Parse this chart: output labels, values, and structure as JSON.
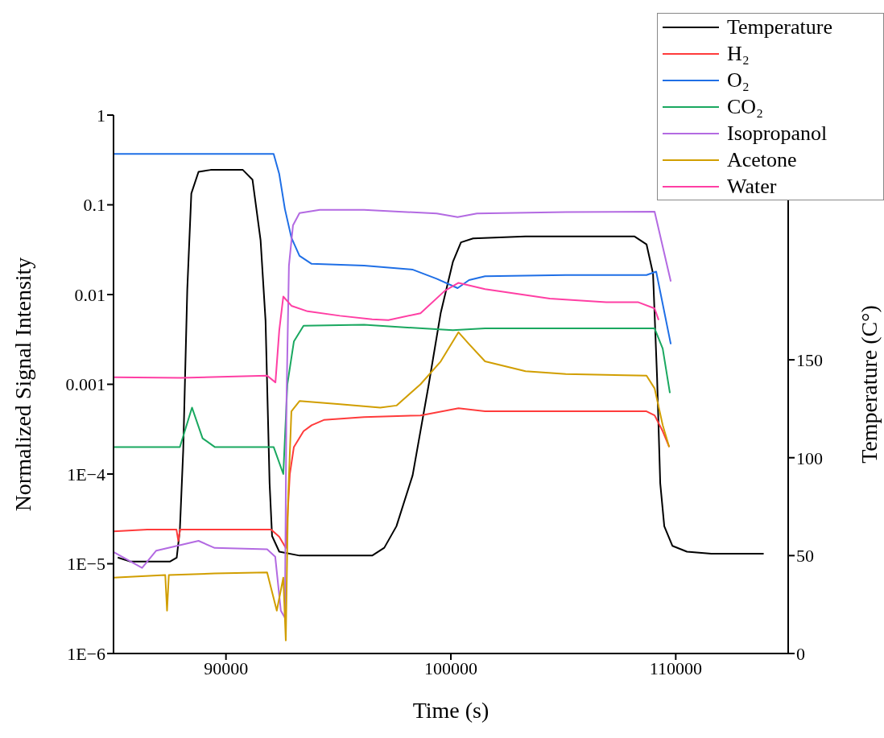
{
  "chart_data": {
    "type": "line",
    "xlabel": "Time (s)",
    "ylabel": "Normalized Signal Intensity",
    "y2label": "Temperature (C°)",
    "xlim": [
      85000,
      115000
    ],
    "xticks": [
      90000,
      100000,
      110000
    ],
    "ylim": [
      1e-06,
      1
    ],
    "yticks": [
      {
        "value": 1e-06,
        "label": "1E−6"
      },
      {
        "value": 1e-05,
        "label": "1E−5"
      },
      {
        "value": 0.0001,
        "label": "1E−4"
      },
      0.001,
      0.01,
      0.1,
      1
    ],
    "y2lim": [
      0,
      275
    ],
    "y2ticks": [
      0,
      50,
      100,
      150
    ],
    "log": "y",
    "grid": false,
    "legend": "top right",
    "marker": "none",
    "line_style": "solid",
    "series": [
      {
        "name": "Temperature",
        "color": "#000000",
        "axis": "y2",
        "x": [
          85190,
          85730,
          87520,
          87810,
          87950,
          88100,
          88280,
          88460,
          88780,
          89320,
          90750,
          91180,
          91540,
          91760,
          91940,
          92050,
          92370,
          93270,
          96500,
          97040,
          97580,
          98300,
          99010,
          99550,
          100090,
          100450,
          100990,
          103320,
          108170,
          108700,
          108990,
          109170,
          109310,
          109490,
          109850,
          110500,
          111580,
          113910
        ],
        "values": [
          49,
          47,
          47,
          49,
          63,
          104,
          186,
          235,
          246,
          247,
          247,
          242,
          211,
          170,
          87,
          60,
          52,
          50,
          50,
          54,
          65,
          91,
          137,
          174,
          200,
          210,
          212,
          213,
          213,
          209,
          194,
          141,
          87,
          65,
          55,
          52,
          51,
          51
        ]
      },
      {
        "name": "H₂",
        "color": "#ff3b3b",
        "x": [
          85000,
          86500,
          87800,
          87880,
          87960,
          89500,
          91500,
          92010,
          92370,
          92660,
          92840,
          93020,
          93450,
          93810,
          94350,
          96140,
          98650,
          100340,
          101520,
          108700,
          109060,
          109420,
          109710
        ],
        "values": [
          2.3e-05,
          2.4e-05,
          2.4e-05,
          1.8e-05,
          2.4e-05,
          2.4e-05,
          2.4e-05,
          2.4e-05,
          2e-05,
          1.5e-05,
          0.0001,
          0.0002,
          0.0003,
          0.00035,
          0.0004,
          0.00043,
          0.00045,
          0.00054,
          0.0005,
          0.0005,
          0.00045,
          0.0003,
          0.0002
        ]
      },
      {
        "name": "O₂",
        "color": "#1f6fe6",
        "x": [
          85000,
          89000,
          92120,
          92370,
          92620,
          92910,
          93270,
          93810,
          96140,
          98290,
          99370,
          100300,
          100810,
          101520,
          105110,
          108700,
          109130,
          109780
        ],
        "values": [
          0.37,
          0.37,
          0.37,
          0.22,
          0.09,
          0.043,
          0.027,
          0.022,
          0.021,
          0.019,
          0.015,
          0.0118,
          0.0145,
          0.016,
          0.0165,
          0.0165,
          0.018,
          0.0028
        ]
      },
      {
        "name": "CO₂",
        "color": "#1aa860",
        "x": [
          85000,
          87950,
          88490,
          88960,
          89500,
          92120,
          92550,
          92730,
          93020,
          93450,
          96140,
          100090,
          101520,
          109060,
          109420,
          109740
        ],
        "values": [
          0.0002,
          0.0002,
          0.00055,
          0.00025,
          0.0002,
          0.0002,
          0.0001,
          0.001,
          0.003,
          0.0045,
          0.0046,
          0.004,
          0.0042,
          0.0042,
          0.0025,
          0.0008
        ]
      },
      {
        "name": "Isopropanol",
        "color": "#b36ae2",
        "x": [
          85000,
          86270,
          86900,
          88780,
          89500,
          91830,
          92190,
          92440,
          92620,
          92690,
          92800,
          92980,
          93270,
          94170,
          96140,
          99370,
          100300,
          101160,
          105110,
          109060,
          109780
        ],
        "values": [
          1.35e-05,
          9e-06,
          1.4e-05,
          1.8e-05,
          1.5e-05,
          1.45e-05,
          1.2e-05,
          3e-06,
          2.5e-06,
          0.00063,
          0.021,
          0.059,
          0.081,
          0.088,
          0.088,
          0.08,
          0.073,
          0.08,
          0.083,
          0.084,
          0.014
        ]
      },
      {
        "name": "Acetone",
        "color": "#d19e00",
        "x": [
          85000,
          87300,
          87380,
          87460,
          89500,
          91830,
          92260,
          92550,
          92660,
          92760,
          92910,
          93270,
          95070,
          96860,
          97580,
          98650,
          99550,
          100340,
          100810,
          101520,
          103320,
          105110,
          108700,
          109060,
          109420,
          109710
        ],
        "values": [
          7e-06,
          7.5e-06,
          3e-06,
          7.5e-06,
          7.8e-06,
          8e-06,
          3e-06,
          7e-06,
          1.4e-06,
          5e-05,
          0.0005,
          0.00065,
          0.0006,
          0.00055,
          0.00058,
          0.001,
          0.0018,
          0.0038,
          0.0028,
          0.0018,
          0.0014,
          0.0013,
          0.00125,
          0.0009,
          0.00035,
          0.0002
        ]
      },
      {
        "name": "Water",
        "color": "#ff3fa4",
        "x": [
          85000,
          88000,
          91830,
          92200,
          92370,
          92550,
          92910,
          93630,
          95070,
          96500,
          97220,
          98650,
          99730,
          100340,
          101520,
          104400,
          106910,
          108340,
          109060,
          109240
        ],
        "values": [
          0.0012,
          0.00118,
          0.00125,
          0.00105,
          0.004,
          0.0095,
          0.0075,
          0.0065,
          0.0058,
          0.0053,
          0.0052,
          0.0062,
          0.011,
          0.0135,
          0.0115,
          0.009,
          0.0082,
          0.0082,
          0.007,
          0.0052
        ]
      }
    ]
  }
}
